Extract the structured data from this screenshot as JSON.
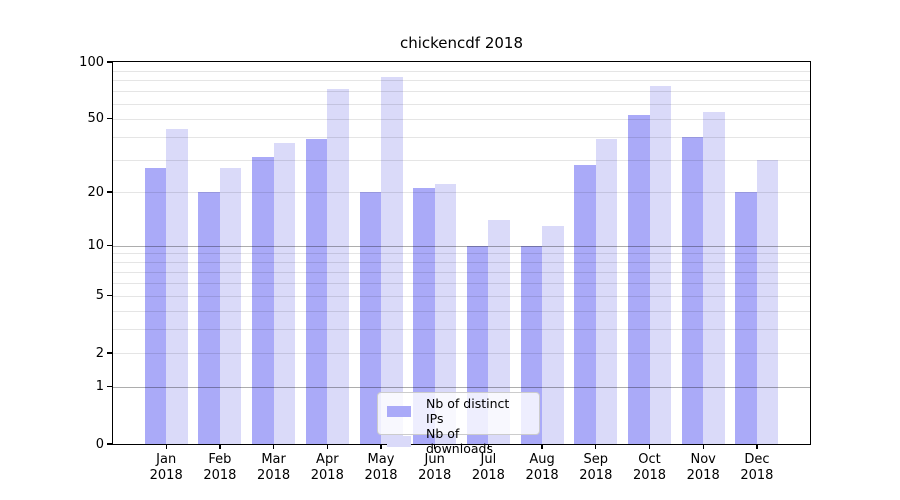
{
  "chart_data": {
    "type": "bar",
    "title": "chickencdf 2018",
    "categories": [
      "Jan",
      "Feb",
      "Mar",
      "Apr",
      "May",
      "Jun",
      "Jul",
      "Aug",
      "Sep",
      "Oct",
      "Nov",
      "Dec"
    ],
    "year": "2018",
    "series": [
      {
        "name": "Nb of distinct IPs",
        "color": "#aaaaf8",
        "values": [
          27,
          20,
          31,
          39,
          20,
          21,
          10,
          10,
          28,
          52,
          40,
          20
        ]
      },
      {
        "name": "Nb of downloads",
        "color": "#dadaf9",
        "values": [
          44,
          27,
          37,
          72,
          83,
          22,
          14,
          13,
          39,
          75,
          54,
          30
        ]
      }
    ],
    "xlabel": "",
    "ylabel": "",
    "yscale": "log1p",
    "ylim": [
      0,
      100
    ],
    "yticks": [
      0,
      1,
      2,
      5,
      10,
      20,
      50,
      100
    ],
    "grid": "both",
    "legend_position": "lower center"
  }
}
